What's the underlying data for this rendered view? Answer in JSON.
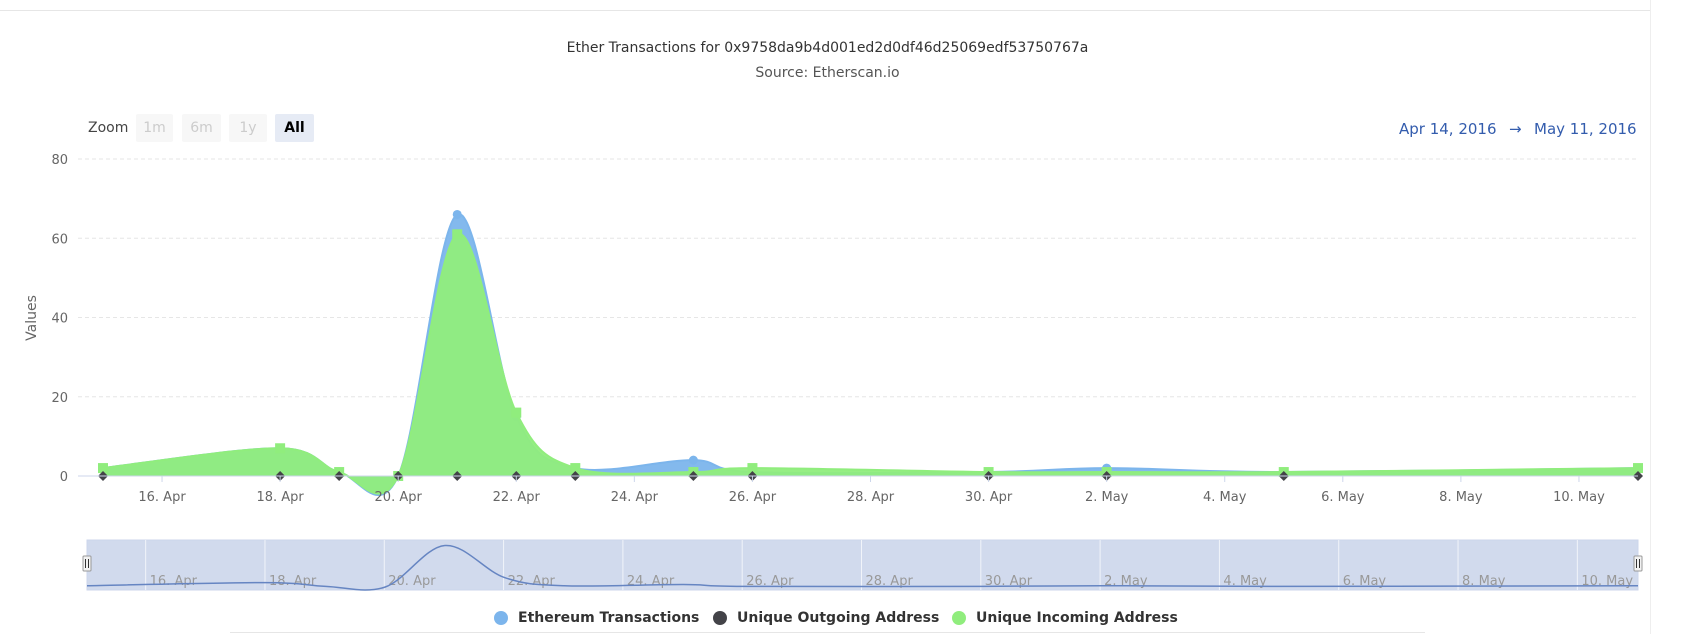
{
  "header": {
    "title": "Ether Transactions for 0x9758da9b4d001ed2d0df46d25069edf53750767a",
    "subtitle": "Source: Etherscan.io"
  },
  "zoom": {
    "label": "Zoom",
    "buttons": [
      "1m",
      "6m",
      "1y",
      "All"
    ],
    "active": "All"
  },
  "range": {
    "from": "Apr 14, 2016",
    "arrow": "→",
    "to": "May 11, 2016"
  },
  "chart_data": {
    "type": "area",
    "title": "Ether Transactions for 0x9758da9b4d001ed2d0df46d25069edf53750767a",
    "subtitle": "Source: Etherscan.io",
    "ylabel": "Values",
    "xlabel": "",
    "ylim": [
      0,
      80
    ],
    "yticks": [
      0,
      20,
      40,
      60,
      80
    ],
    "xlim": [
      "2016-04-15",
      "2016-05-11"
    ],
    "xticks": [
      {
        "date": "2016-04-16",
        "label": "16. Apr"
      },
      {
        "date": "2016-04-18",
        "label": "18. Apr"
      },
      {
        "date": "2016-04-20",
        "label": "20. Apr"
      },
      {
        "date": "2016-04-22",
        "label": "22. Apr"
      },
      {
        "date": "2016-04-24",
        "label": "24. Apr"
      },
      {
        "date": "2016-04-26",
        "label": "26. Apr"
      },
      {
        "date": "2016-04-28",
        "label": "28. Apr"
      },
      {
        "date": "2016-04-30",
        "label": "30. Apr"
      },
      {
        "date": "2016-05-02",
        "label": "2. May"
      },
      {
        "date": "2016-05-04",
        "label": "4. May"
      },
      {
        "date": "2016-05-06",
        "label": "6. May"
      },
      {
        "date": "2016-05-08",
        "label": "8. May"
      },
      {
        "date": "2016-05-10",
        "label": "10. May"
      }
    ],
    "grid": true,
    "legend_position": "bottom-center",
    "series": [
      {
        "name": "Ethereum Transactions",
        "color": "#7cb5ec",
        "marker": "circle",
        "points": [
          {
            "x": "2016-04-15",
            "y": 2
          },
          {
            "x": "2016-04-18",
            "y": 7
          },
          {
            "x": "2016-04-19",
            "y": 1
          },
          {
            "x": "2016-04-20",
            "y": 0
          },
          {
            "x": "2016-04-21",
            "y": 66
          },
          {
            "x": "2016-04-22",
            "y": 15
          },
          {
            "x": "2016-04-23",
            "y": 2
          },
          {
            "x": "2016-04-25",
            "y": 4
          },
          {
            "x": "2016-04-26",
            "y": 1
          },
          {
            "x": "2016-04-30",
            "y": 1
          },
          {
            "x": "2016-05-02",
            "y": 2
          },
          {
            "x": "2016-05-05",
            "y": 1
          },
          {
            "x": "2016-05-11",
            "y": 2
          }
        ]
      },
      {
        "name": "Unique Outgoing Address",
        "color": "#434348",
        "marker": "diamond",
        "points": [
          {
            "x": "2016-04-15",
            "y": 0
          },
          {
            "x": "2016-04-18",
            "y": 0
          },
          {
            "x": "2016-04-19",
            "y": 0
          },
          {
            "x": "2016-04-20",
            "y": 0
          },
          {
            "x": "2016-04-21",
            "y": 0
          },
          {
            "x": "2016-04-22",
            "y": 0
          },
          {
            "x": "2016-04-23",
            "y": 0
          },
          {
            "x": "2016-04-25",
            "y": 0
          },
          {
            "x": "2016-04-26",
            "y": 0
          },
          {
            "x": "2016-04-30",
            "y": 0
          },
          {
            "x": "2016-05-02",
            "y": 0
          },
          {
            "x": "2016-05-05",
            "y": 0
          },
          {
            "x": "2016-05-11",
            "y": 0
          }
        ]
      },
      {
        "name": "Unique Incoming Address",
        "color": "#90ed7d",
        "marker": "square",
        "points": [
          {
            "x": "2016-04-15",
            "y": 2
          },
          {
            "x": "2016-04-18",
            "y": 7
          },
          {
            "x": "2016-04-19",
            "y": 1
          },
          {
            "x": "2016-04-20",
            "y": 0
          },
          {
            "x": "2016-04-21",
            "y": 61
          },
          {
            "x": "2016-04-22",
            "y": 16
          },
          {
            "x": "2016-04-23",
            "y": 2
          },
          {
            "x": "2016-04-25",
            "y": 1
          },
          {
            "x": "2016-04-26",
            "y": 2
          },
          {
            "x": "2016-04-30",
            "y": 1
          },
          {
            "x": "2016-05-02",
            "y": 1
          },
          {
            "x": "2016-05-05",
            "y": 1
          },
          {
            "x": "2016-05-11",
            "y": 2
          }
        ]
      }
    ],
    "navigator": {
      "series": "Ethereum Transactions",
      "ticks": [
        "16. Apr",
        "18. Apr",
        "20. Apr",
        "22. Apr",
        "24. Apr",
        "26. Apr",
        "28. Apr",
        "30. Apr",
        "2. May",
        "4. May",
        "6. May",
        "8. May",
        "10. May"
      ]
    }
  },
  "legend": {
    "items": [
      {
        "label": "Ethereum Transactions",
        "color": "#7cb5ec"
      },
      {
        "label": "Unique Outgoing Address",
        "color": "#434348"
      },
      {
        "label": "Unique Incoming Address",
        "color": "#90ed7d"
      }
    ]
  }
}
